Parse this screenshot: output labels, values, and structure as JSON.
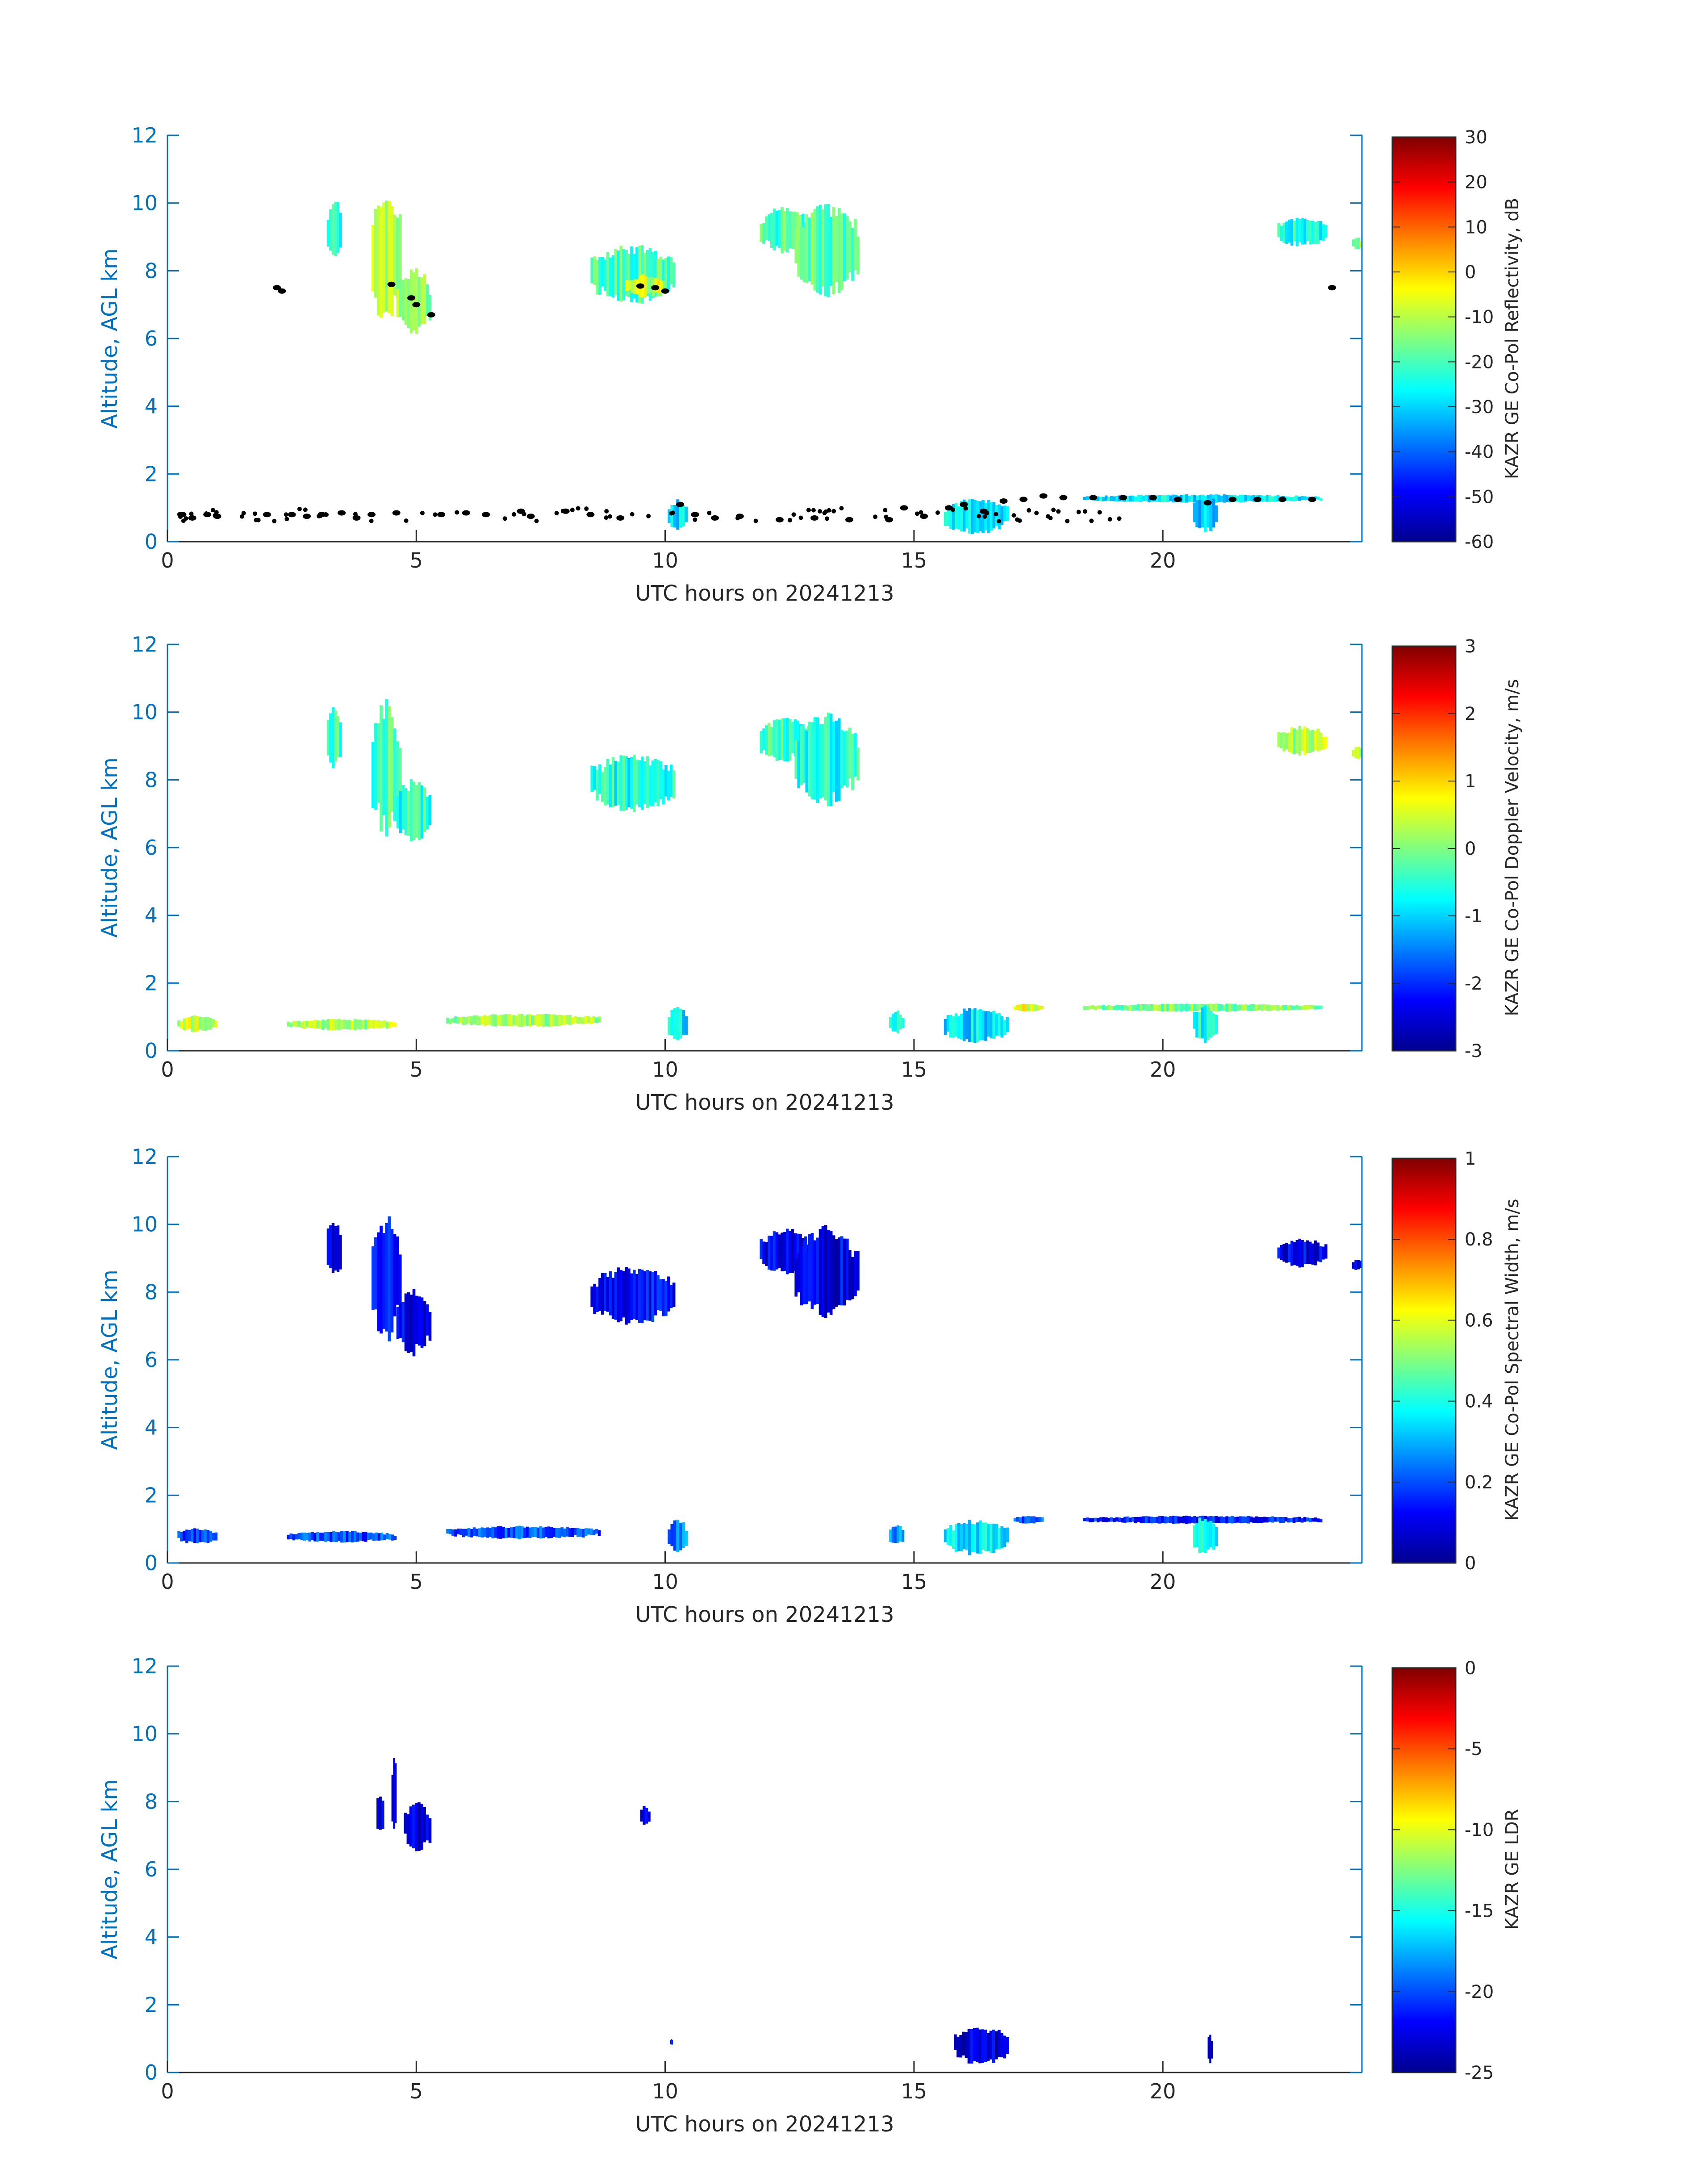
{
  "figure": {
    "xlabel": "UTC hours on 20241213",
    "ylabel": "Altitude, AGL km",
    "colors": {
      "axis": "#0072bd",
      "label_dark": "#262626",
      "cloud_marker": "#000000",
      "colormap": [
        "#00008f",
        "#0000ff",
        "#0080ff",
        "#00ffff",
        "#80ff80",
        "#ffff00",
        "#ff8000",
        "#ff0000",
        "#800000"
      ]
    }
  },
  "chart_data": [
    {
      "type": "heatmap",
      "panel": "reflectivity",
      "xlabel": "UTC hours on 20241213",
      "ylabel": "Altitude, AGL km",
      "xlim": [
        0,
        24
      ],
      "ylim": [
        0,
        12
      ],
      "xticks": [
        "0",
        "5",
        "10",
        "15",
        "20"
      ],
      "yticks": [
        "0",
        "2",
        "4",
        "6",
        "8",
        "10",
        "12"
      ],
      "colorbar": {
        "label": "KAZR GE Co-Pol Reflectivity, dB",
        "min": -60,
        "max": 30,
        "ticks": [
          "-60",
          "-50",
          "-40",
          "-30",
          "-20",
          "-10",
          "0",
          "10",
          "20",
          "30"
        ]
      },
      "regions": [
        {
          "x": [
            3.2,
            3.5
          ],
          "y": [
            8.3,
            10.2
          ],
          "v": -22
        },
        {
          "x": [
            4.1,
            4.7
          ],
          "y": [
            6.3,
            10.4
          ],
          "v": -12
        },
        {
          "x": [
            4.6,
            5.3
          ],
          "y": [
            6.1,
            8.1
          ],
          "v": -14
        },
        {
          "x": [
            8.5,
            10.2
          ],
          "y": [
            7.0,
            8.8
          ],
          "v": -20
        },
        {
          "x": [
            9.2,
            10.0
          ],
          "y": [
            7.2,
            7.9
          ],
          "v": -8
        },
        {
          "x": [
            11.9,
            12.9
          ],
          "y": [
            8.5,
            9.9
          ],
          "v": -20
        },
        {
          "x": [
            12.6,
            13.9
          ],
          "y": [
            7.2,
            10.0
          ],
          "v": -18
        },
        {
          "x": [
            22.3,
            23.3
          ],
          "y": [
            8.7,
            9.6
          ],
          "v": -24
        },
        {
          "x": [
            23.8,
            24.0
          ],
          "y": [
            8.6,
            9.0
          ],
          "v": -12
        },
        {
          "x": [
            10.05,
            10.45
          ],
          "y": [
            0.3,
            1.3
          ],
          "v": -28
        },
        {
          "x": [
            15.6,
            16.9
          ],
          "y": [
            0.2,
            1.3
          ],
          "v": -28
        },
        {
          "x": [
            18.4,
            23.2
          ],
          "y": [
            1.15,
            1.4
          ],
          "v": -28
        },
        {
          "x": [
            20.6,
            21.1
          ],
          "y": [
            0.2,
            1.4
          ],
          "v": -32
        }
      ],
      "cloud_base_points": [
        {
          "x": 0.3,
          "y": 0.8
        },
        {
          "x": 0.5,
          "y": 0.7
        },
        {
          "x": 0.8,
          "y": 0.8
        },
        {
          "x": 1.0,
          "y": 0.75
        },
        {
          "x": 2.0,
          "y": 0.8
        },
        {
          "x": 2.2,
          "y": 7.5
        },
        {
          "x": 2.3,
          "y": 7.4
        },
        {
          "x": 2.5,
          "y": 0.8
        },
        {
          "x": 2.8,
          "y": 0.75
        },
        {
          "x": 3.1,
          "y": 0.8
        },
        {
          "x": 3.5,
          "y": 0.85
        },
        {
          "x": 3.8,
          "y": 0.7
        },
        {
          "x": 4.1,
          "y": 0.8
        },
        {
          "x": 4.5,
          "y": 7.6
        },
        {
          "x": 4.6,
          "y": 0.85
        },
        {
          "x": 4.9,
          "y": 7.2
        },
        {
          "x": 5.0,
          "y": 7.0
        },
        {
          "x": 5.3,
          "y": 6.7
        },
        {
          "x": 5.5,
          "y": 0.8
        },
        {
          "x": 6.0,
          "y": 0.85
        },
        {
          "x": 6.4,
          "y": 0.8
        },
        {
          "x": 7.1,
          "y": 0.9
        },
        {
          "x": 7.3,
          "y": 0.75
        },
        {
          "x": 8.0,
          "y": 0.9
        },
        {
          "x": 8.5,
          "y": 0.8
        },
        {
          "x": 9.1,
          "y": 0.7
        },
        {
          "x": 9.5,
          "y": 7.55
        },
        {
          "x": 9.8,
          "y": 7.5
        },
        {
          "x": 10.0,
          "y": 7.4
        },
        {
          "x": 10.3,
          "y": 1.1
        },
        {
          "x": 10.6,
          "y": 0.8
        },
        {
          "x": 11.0,
          "y": 0.7
        },
        {
          "x": 11.5,
          "y": 0.75
        },
        {
          "x": 12.3,
          "y": 0.65
        },
        {
          "x": 13.0,
          "y": 0.7
        },
        {
          "x": 13.7,
          "y": 0.65
        },
        {
          "x": 14.5,
          "y": 0.65
        },
        {
          "x": 14.8,
          "y": 1.0
        },
        {
          "x": 15.2,
          "y": 0.75
        },
        {
          "x": 15.7,
          "y": 1.0
        },
        {
          "x": 16.0,
          "y": 1.1
        },
        {
          "x": 16.4,
          "y": 0.9
        },
        {
          "x": 16.8,
          "y": 1.2
        },
        {
          "x": 17.2,
          "y": 1.25
        },
        {
          "x": 17.6,
          "y": 1.35
        },
        {
          "x": 18.0,
          "y": 1.3
        },
        {
          "x": 18.6,
          "y": 1.3
        },
        {
          "x": 19.2,
          "y": 1.3
        },
        {
          "x": 19.8,
          "y": 1.3
        },
        {
          "x": 20.3,
          "y": 1.25
        },
        {
          "x": 20.9,
          "y": 1.15
        },
        {
          "x": 21.4,
          "y": 1.25
        },
        {
          "x": 21.9,
          "y": 1.25
        },
        {
          "x": 22.4,
          "y": 1.25
        },
        {
          "x": 23.0,
          "y": 1.25
        },
        {
          "x": 23.4,
          "y": 7.5
        }
      ],
      "scatter_points": {
        "x_range": [
          0.2,
          19.5
        ],
        "y_range": [
          0.6,
          1.0
        ],
        "count": 90
      }
    },
    {
      "type": "heatmap",
      "panel": "doppler-velocity",
      "xlabel": "UTC hours on 20241213",
      "ylabel": "Altitude, AGL km",
      "xlim": [
        0,
        24
      ],
      "ylim": [
        0,
        12
      ],
      "xticks": [
        "0",
        "5",
        "10",
        "15",
        "20"
      ],
      "yticks": [
        "0",
        "2",
        "4",
        "6",
        "8",
        "10",
        "12"
      ],
      "colorbar": {
        "label": "KAZR GE Co-Pol Doppler Velocity, m/s",
        "min": -3,
        "max": 3,
        "ticks": [
          "-3",
          "-2",
          "-1",
          "0",
          "1",
          "2",
          "3"
        ]
      },
      "regions": [
        {
          "x": [
            3.2,
            3.5
          ],
          "y": [
            8.3,
            10.2
          ],
          "v": -0.4
        },
        {
          "x": [
            4.1,
            4.7
          ],
          "y": [
            6.3,
            10.4
          ],
          "v": -0.3
        },
        {
          "x": [
            4.6,
            5.3
          ],
          "y": [
            6.1,
            8.1
          ],
          "v": -0.5
        },
        {
          "x": [
            8.5,
            10.2
          ],
          "y": [
            7.0,
            8.8
          ],
          "v": -0.6
        },
        {
          "x": [
            11.9,
            12.9
          ],
          "y": [
            8.5,
            9.9
          ],
          "v": -0.4
        },
        {
          "x": [
            12.6,
            13.9
          ],
          "y": [
            7.2,
            10.0
          ],
          "v": -0.6
        },
        {
          "x": [
            22.3,
            23.3
          ],
          "y": [
            8.7,
            9.6
          ],
          "v": 0.3
        },
        {
          "x": [
            23.8,
            24.0
          ],
          "y": [
            8.6,
            9.0
          ],
          "v": 0.2
        },
        {
          "x": [
            0.2,
            1.0
          ],
          "y": [
            0.55,
            1.05
          ],
          "v": 0.4
        },
        {
          "x": [
            2.4,
            4.6
          ],
          "y": [
            0.6,
            0.95
          ],
          "v": 0.3
        },
        {
          "x": [
            5.6,
            8.7
          ],
          "y": [
            0.7,
            1.1
          ],
          "v": 0.2
        },
        {
          "x": [
            10.05,
            10.45
          ],
          "y": [
            0.3,
            1.3
          ],
          "v": -0.9
        },
        {
          "x": [
            14.5,
            14.8
          ],
          "y": [
            0.5,
            1.2
          ],
          "v": -0.5
        },
        {
          "x": [
            15.6,
            16.9
          ],
          "y": [
            0.2,
            1.3
          ],
          "v": -0.9
        },
        {
          "x": [
            17.0,
            17.6
          ],
          "y": [
            1.15,
            1.4
          ],
          "v": 0.6
        },
        {
          "x": [
            18.4,
            23.2
          ],
          "y": [
            1.15,
            1.4
          ],
          "v": 0.0
        },
        {
          "x": [
            20.6,
            21.1
          ],
          "y": [
            0.2,
            1.4
          ],
          "v": -0.6
        }
      ]
    },
    {
      "type": "heatmap",
      "panel": "spectral-width",
      "xlabel": "UTC hours on 20241213",
      "ylabel": "Altitude, AGL km",
      "xlim": [
        0,
        24
      ],
      "ylim": [
        0,
        12
      ],
      "xticks": [
        "0",
        "5",
        "10",
        "15",
        "20"
      ],
      "yticks": [
        "0",
        "2",
        "4",
        "6",
        "8",
        "10",
        "12"
      ],
      "colorbar": {
        "label": "KAZR GE Co-Pol Spectral Width, m/s",
        "min": 0,
        "max": 1,
        "ticks": [
          "0",
          "0.2",
          "0.4",
          "0.6",
          "0.8",
          "1"
        ]
      },
      "regions": [
        {
          "x": [
            3.2,
            3.5
          ],
          "y": [
            8.3,
            10.2
          ],
          "v": 0.1
        },
        {
          "x": [
            4.1,
            4.7
          ],
          "y": [
            6.3,
            10.4
          ],
          "v": 0.12
        },
        {
          "x": [
            4.6,
            5.3
          ],
          "y": [
            6.1,
            8.1
          ],
          "v": 0.1
        },
        {
          "x": [
            8.5,
            10.2
          ],
          "y": [
            7.0,
            8.8
          ],
          "v": 0.12
        },
        {
          "x": [
            11.9,
            12.9
          ],
          "y": [
            8.5,
            9.9
          ],
          "v": 0.1
        },
        {
          "x": [
            12.6,
            13.9
          ],
          "y": [
            7.2,
            10.0
          ],
          "v": 0.1
        },
        {
          "x": [
            22.3,
            23.3
          ],
          "y": [
            8.7,
            9.6
          ],
          "v": 0.1
        },
        {
          "x": [
            23.8,
            24.0
          ],
          "y": [
            8.6,
            9.0
          ],
          "v": 0.1
        },
        {
          "x": [
            0.2,
            1.0
          ],
          "y": [
            0.55,
            1.05
          ],
          "v": 0.2
        },
        {
          "x": [
            2.4,
            4.6
          ],
          "y": [
            0.6,
            0.95
          ],
          "v": 0.2
        },
        {
          "x": [
            5.6,
            8.7
          ],
          "y": [
            0.7,
            1.1
          ],
          "v": 0.2
        },
        {
          "x": [
            10.05,
            10.45
          ],
          "y": [
            0.3,
            1.3
          ],
          "v": 0.25
        },
        {
          "x": [
            14.5,
            14.8
          ],
          "y": [
            0.5,
            1.2
          ],
          "v": 0.25
        },
        {
          "x": [
            15.6,
            16.9
          ],
          "y": [
            0.2,
            1.3
          ],
          "v": 0.35
        },
        {
          "x": [
            17.0,
            17.6
          ],
          "y": [
            1.15,
            1.4
          ],
          "v": 0.2
        },
        {
          "x": [
            18.4,
            23.2
          ],
          "y": [
            1.15,
            1.4
          ],
          "v": 0.15
        },
        {
          "x": [
            20.6,
            21.1
          ],
          "y": [
            0.2,
            1.4
          ],
          "v": 0.4
        }
      ]
    },
    {
      "type": "heatmap",
      "panel": "ldr",
      "xlabel": "UTC hours on 20241213",
      "ylabel": "Altitude, AGL km",
      "xlim": [
        0,
        24
      ],
      "ylim": [
        0,
        12
      ],
      "xticks": [
        "0",
        "5",
        "10",
        "15",
        "20"
      ],
      "yticks": [
        "0",
        "2",
        "4",
        "6",
        "8",
        "10",
        "12"
      ],
      "colorbar": {
        "label": "KAZR GE LDR",
        "min": -25,
        "max": 0,
        "ticks": [
          "-25",
          "-20",
          "-15",
          "-10",
          "-5",
          "0"
        ]
      },
      "regions": [
        {
          "x": [
            4.2,
            4.35
          ],
          "y": [
            7.0,
            8.3
          ],
          "v": -23
        },
        {
          "x": [
            4.5,
            4.6
          ],
          "y": [
            7.0,
            9.5
          ],
          "v": -23
        },
        {
          "x": [
            4.75,
            5.3
          ],
          "y": [
            6.5,
            8.0
          ],
          "v": -23
        },
        {
          "x": [
            9.5,
            9.7
          ],
          "y": [
            7.3,
            7.9
          ],
          "v": -22
        },
        {
          "x": [
            10.1,
            10.15
          ],
          "y": [
            0.8,
            1.0
          ],
          "v": -22
        },
        {
          "x": [
            15.8,
            16.9
          ],
          "y": [
            0.2,
            1.4
          ],
          "v": -23
        },
        {
          "x": [
            20.9,
            21.0
          ],
          "y": [
            0.2,
            1.2
          ],
          "v": -23
        }
      ]
    }
  ]
}
